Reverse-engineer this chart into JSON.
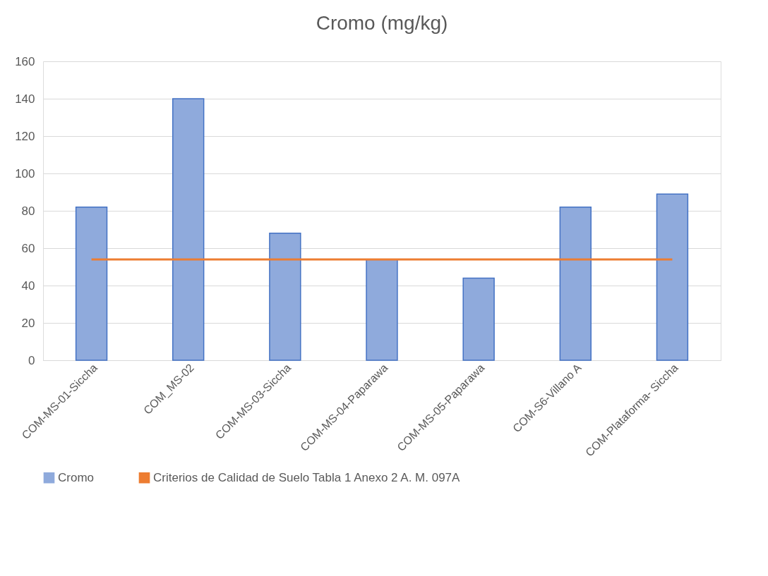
{
  "chart_data": {
    "type": "bar",
    "title": "Cromo (mg/kg)",
    "categories": [
      "COM-MS-01-Siccha",
      "COM_MS-02",
      "COM-MS-03-Siccha",
      "COM-MS-04-Paparawa",
      "COM-MS-05-Paparawa",
      "COM-S6-Villano A",
      "COM-Plataforma- Siccha"
    ],
    "series": [
      {
        "name": "Cromo",
        "color": "#8faadc",
        "values": [
          82,
          140,
          68,
          54,
          44,
          82,
          89
        ]
      },
      {
        "name": "Criterios de Calidad de Suelo Tabla 1 Anexo 2 A. M. 097A",
        "type": "line",
        "color": "#ed7d31",
        "values": [
          54,
          54,
          54,
          54,
          54,
          54,
          54
        ]
      }
    ],
    "ylim": [
      0,
      160
    ],
    "yticks": [
      0,
      20,
      40,
      60,
      80,
      100,
      120,
      140,
      160
    ],
    "grid": "y",
    "legend": "bottom"
  }
}
